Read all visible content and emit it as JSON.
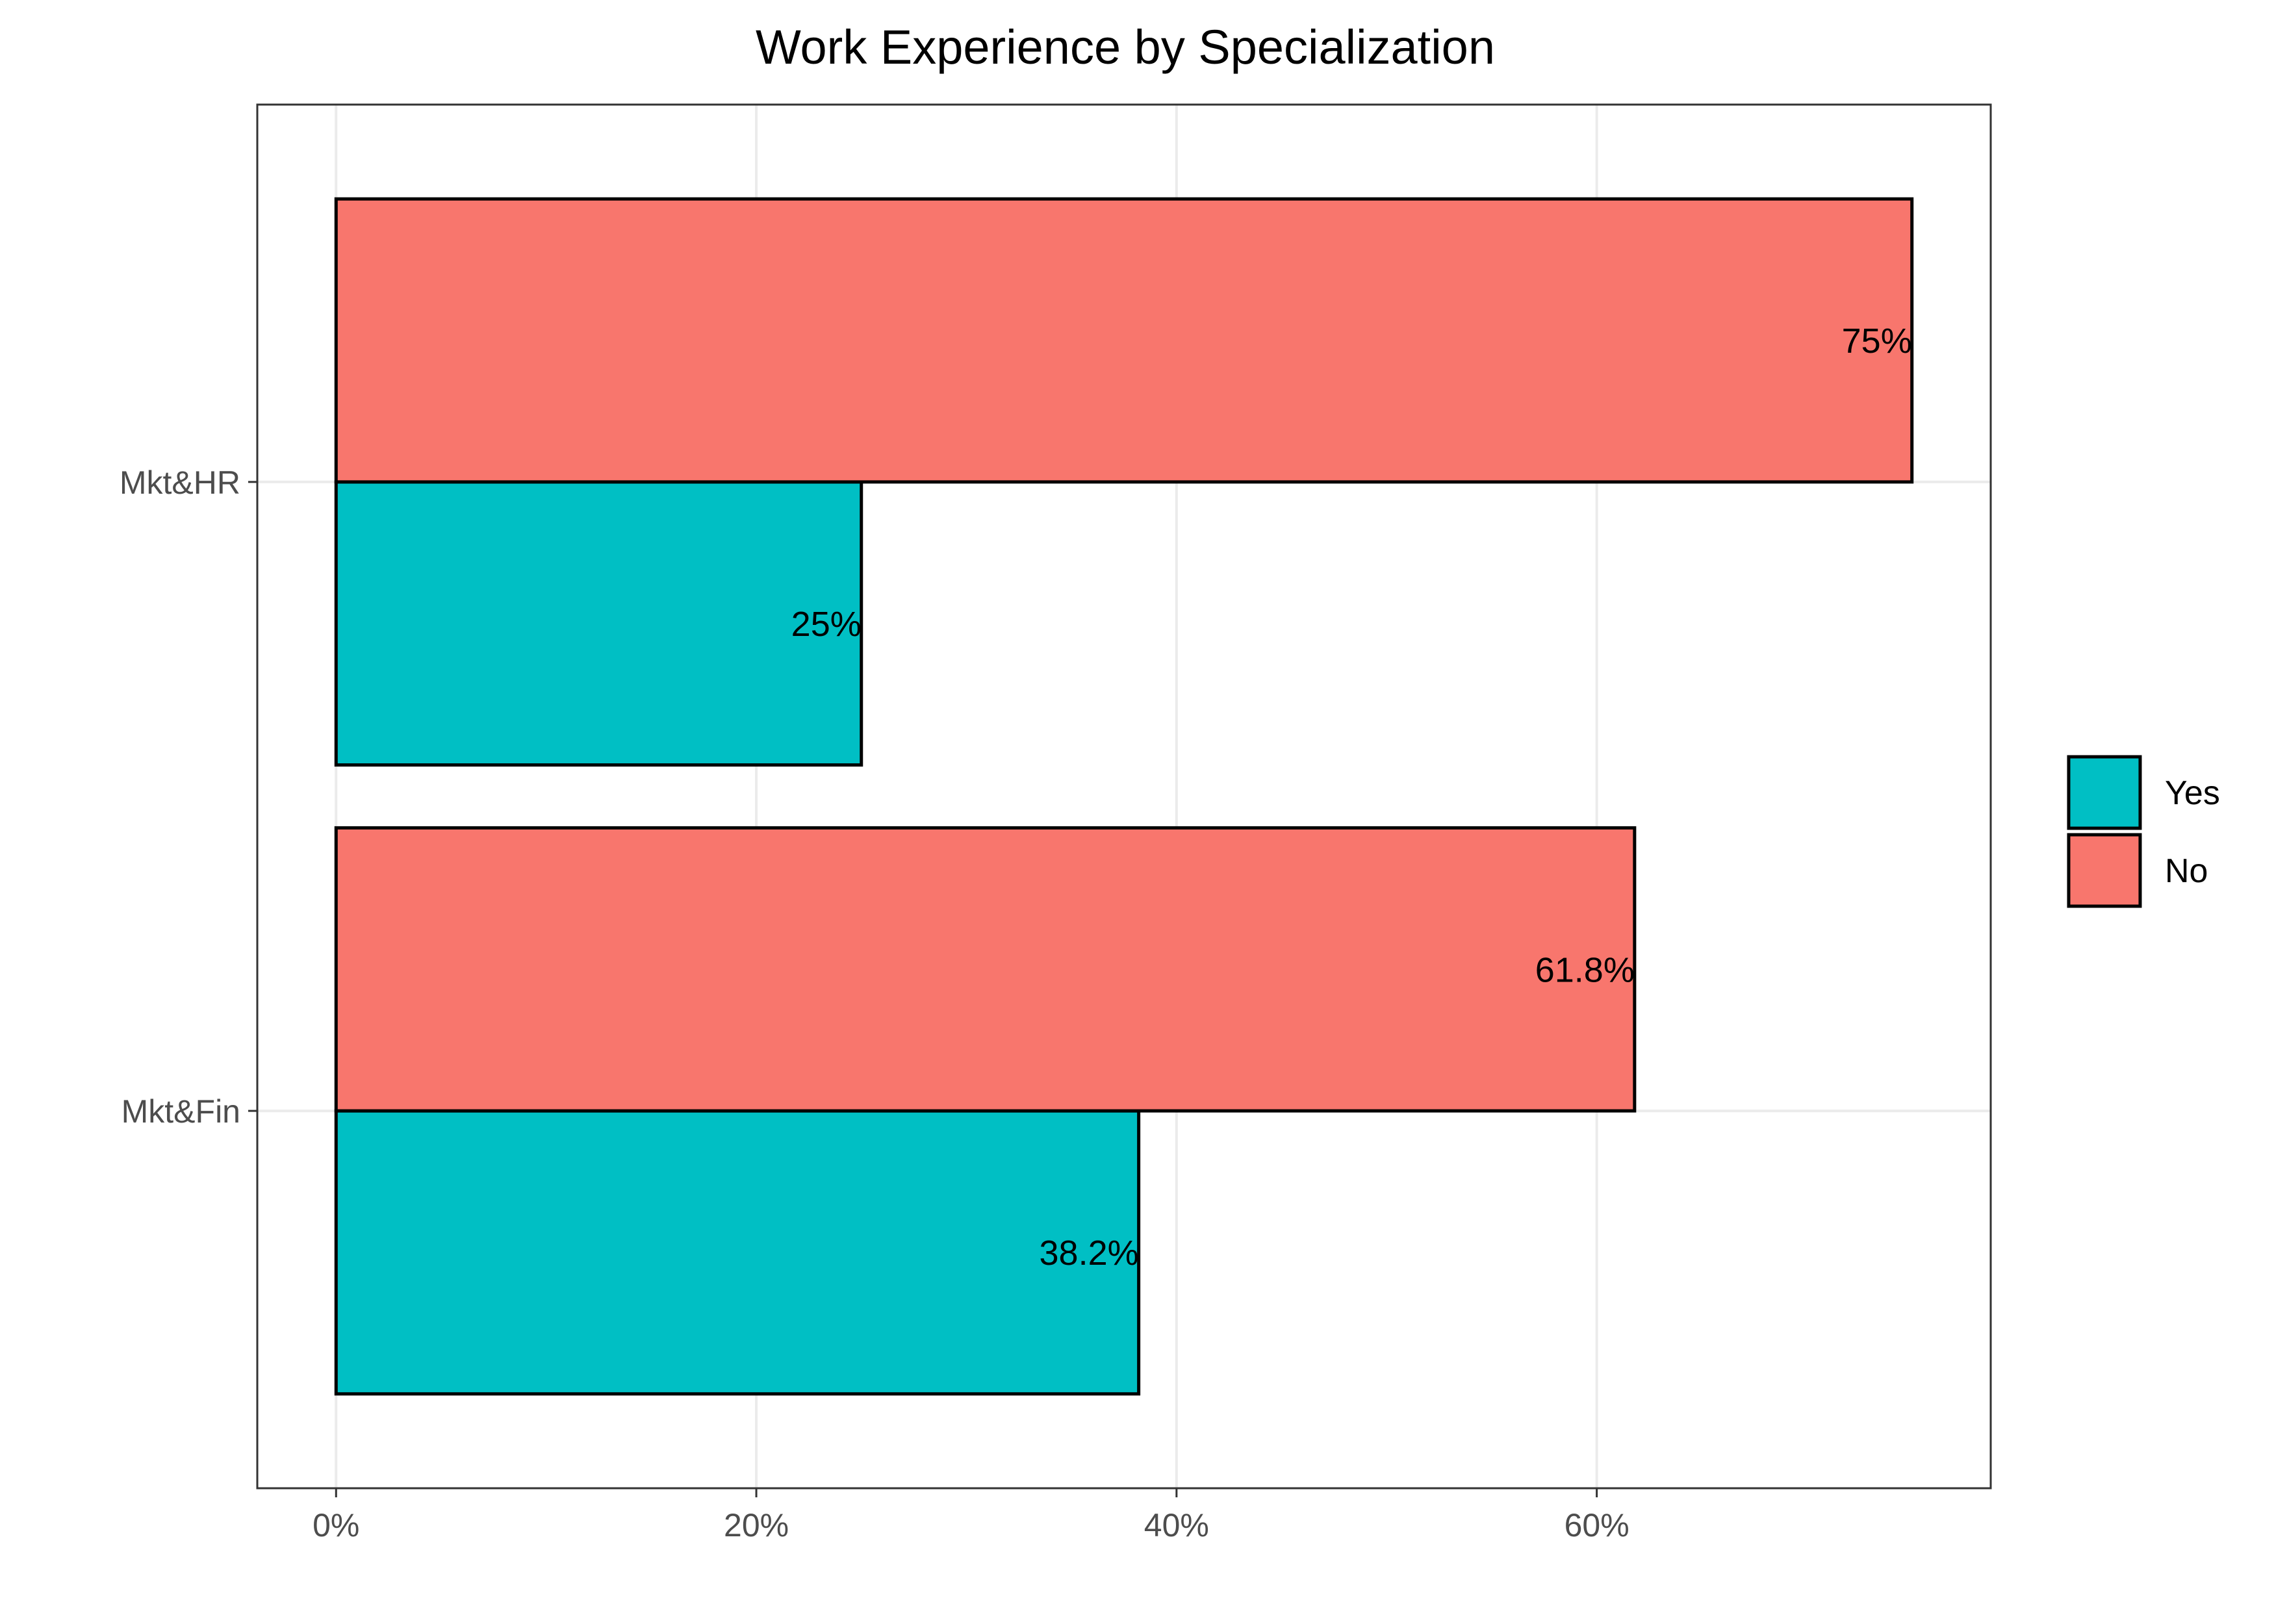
{
  "chart_data": {
    "type": "bar",
    "orientation": "horizontal",
    "title": "Work Experience by Specialization",
    "xlabel": "",
    "ylabel": "",
    "categories": [
      "Mkt&Fin",
      "Mkt&HR"
    ],
    "series": [
      {
        "name": "Yes",
        "values": [
          38.2,
          25
        ],
        "labels": [
          "38.2%",
          "25%"
        ],
        "color": "#00BFC4"
      },
      {
        "name": "No",
        "values": [
          61.8,
          75
        ],
        "labels": [
          "61.8%",
          "75%"
        ],
        "color": "#F8766D"
      }
    ],
    "xlim": [
      -3.75,
      78.75
    ],
    "x_ticks": [
      0,
      20,
      40,
      60
    ],
    "x_tick_labels": [
      "0%",
      "20%",
      "40%",
      "60%"
    ],
    "grid": true,
    "legend_position": "right",
    "colors": {
      "panel_border": "#333333",
      "grid": "#ebebeb",
      "bar_outline": "#000000"
    }
  }
}
